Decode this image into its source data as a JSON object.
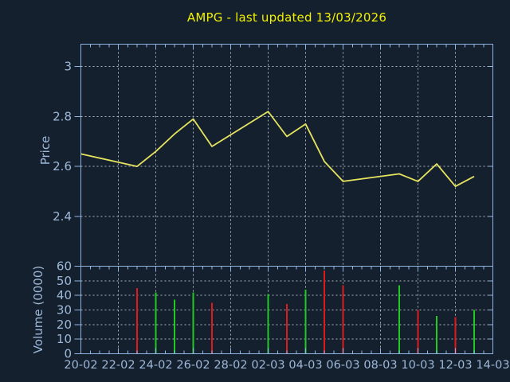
{
  "title": "AMPG - last updated 13/03/2026",
  "colors": {
    "background": "#15202e",
    "frame": "#8fb4e0",
    "tick_text": "#9db8d8",
    "title_text": "#f0f000",
    "price_line": "#e6e45e",
    "grid": "#aeb4bc",
    "volume_up": "#1ecb1e",
    "volume_down": "#e01a1a"
  },
  "x_axis": {
    "tick_labels": [
      "20-02",
      "22-02",
      "24-02",
      "26-02",
      "28-02",
      "02-03",
      "04-03",
      "06-03",
      "08-03",
      "10-03",
      "12-03",
      "14-03"
    ],
    "tick_days": [
      0,
      2,
      4,
      6,
      8,
      10,
      12,
      14,
      16,
      18,
      20,
      22
    ],
    "xlim_days": [
      0,
      22
    ],
    "minor_tick_interval_days": 0.5
  },
  "chart_data": [
    {
      "type": "line",
      "name": "price",
      "ylabel": "Price",
      "ytick_labels": [
        "2.4",
        "2.6",
        "2.8",
        "3"
      ],
      "ytick_values": [
        2.4,
        2.6,
        2.8,
        3
      ],
      "ylim": [
        2.2,
        3.09
      ],
      "grid": true,
      "x_dates": [
        "20-02",
        "23-02",
        "24-02",
        "25-02",
        "26-02",
        "27-02",
        "02-03",
        "03-03",
        "04-03",
        "05-03",
        "06-03",
        "09-03",
        "10-03",
        "11-03",
        "12-03",
        "13-03"
      ],
      "x_days": [
        0,
        3,
        4,
        5,
        6,
        7,
        10,
        11,
        12,
        13,
        14,
        17,
        18,
        19,
        20,
        21
      ],
      "values": [
        2.65,
        2.6,
        2.66,
        2.73,
        2.79,
        2.68,
        2.82,
        2.72,
        2.77,
        2.62,
        2.54,
        2.57,
        2.54,
        2.61,
        2.52,
        2.56
      ]
    },
    {
      "type": "bar",
      "name": "volume",
      "ylabel": "Volume (0000)",
      "ytick_labels": [
        "0",
        "10",
        "20",
        "30",
        "40",
        "50",
        "60"
      ],
      "ytick_values": [
        0,
        10,
        20,
        30,
        40,
        50,
        60
      ],
      "ylim": [
        0,
        60
      ],
      "grid": true,
      "x_dates": [
        "23-02",
        "24-02",
        "25-02",
        "26-02",
        "27-02",
        "02-03",
        "03-03",
        "04-03",
        "05-03",
        "06-03",
        "09-03",
        "10-03",
        "11-03",
        "12-03",
        "13-03"
      ],
      "x_days": [
        3,
        4,
        5,
        6,
        7,
        10,
        11,
        12,
        13,
        14,
        17,
        18,
        19,
        20,
        21
      ],
      "values": [
        45,
        42,
        37,
        42,
        35,
        41,
        34,
        44,
        57,
        47,
        47,
        30,
        26,
        25,
        30
      ],
      "directions": [
        "down",
        "up",
        "up",
        "up",
        "down",
        "up",
        "down",
        "up",
        "down",
        "down",
        "up",
        "down",
        "up",
        "down",
        "up"
      ]
    }
  ]
}
